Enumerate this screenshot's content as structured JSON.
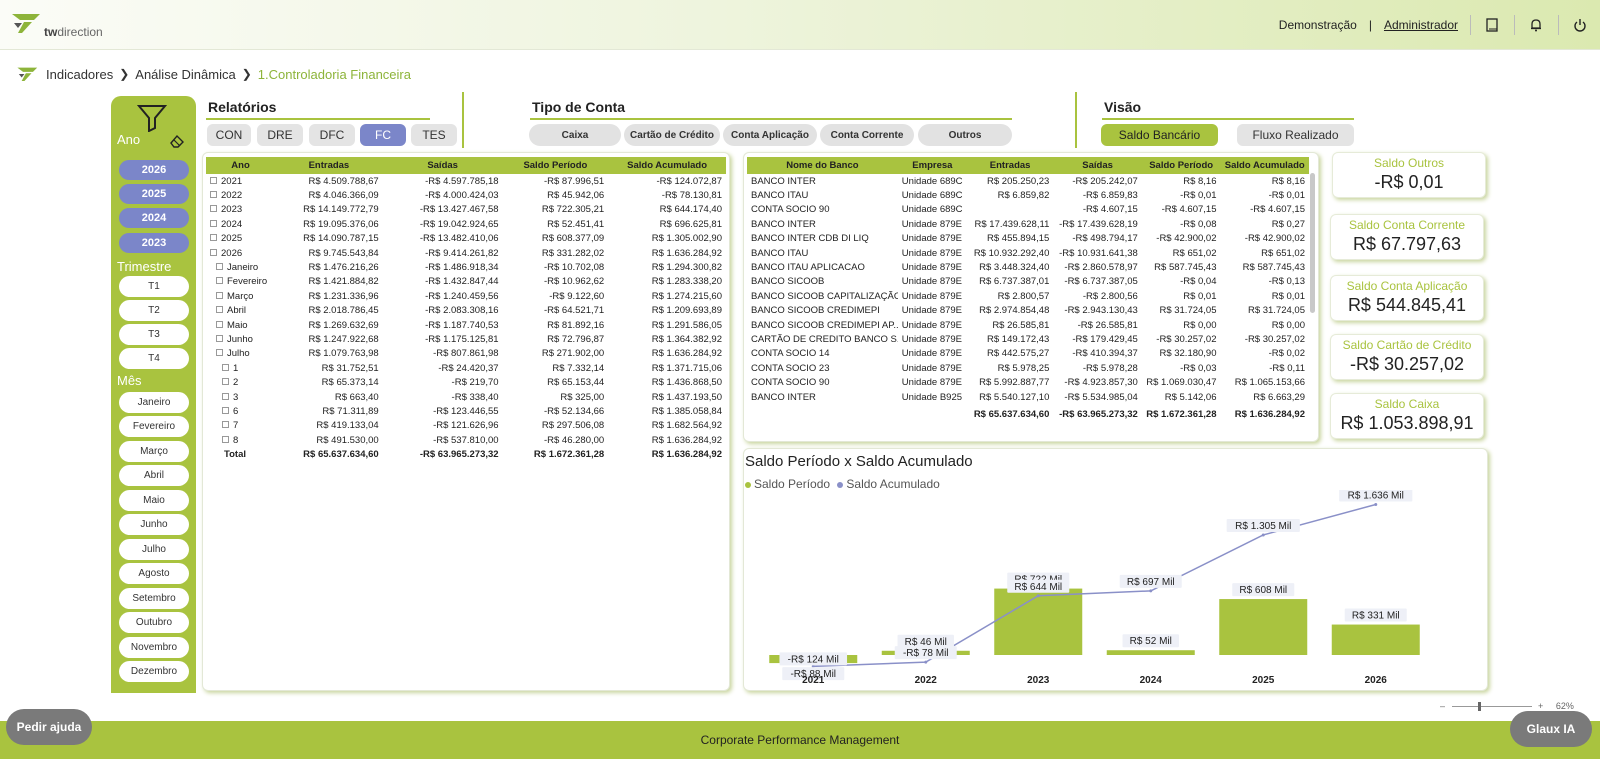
{
  "topbar": {
    "logo_text_bold": "tw",
    "logo_text": "direction",
    "demo": "Demonstração",
    "sep": "|",
    "admin": "Administrador"
  },
  "breadcrumb": [
    "Indicadores",
    "Análise Dinâmica",
    "1.Controladoria Financeira"
  ],
  "filters": {
    "ano_label": "Ano",
    "anos": [
      "2026",
      "2025",
      "2024",
      "2023"
    ],
    "trimestre_label": "Trimestre",
    "trimestres": [
      "T1",
      "T2",
      "T3",
      "T4"
    ],
    "mes_label": "Mês",
    "meses": [
      "Janeiro",
      "Fevereiro",
      "Março",
      "Abril",
      "Maio",
      "Junho",
      "Julho",
      "Agosto",
      "Setembro",
      "Outubro",
      "Novembro",
      "Dezembro"
    ]
  },
  "relatorios": {
    "title": "Relatórios",
    "tabs": [
      "CON",
      "DRE",
      "DFC",
      "FC",
      "TES"
    ],
    "selected": "FC"
  },
  "tipo_conta": {
    "title": "Tipo de Conta",
    "buttons": [
      "Caixa",
      "Cartão de Crédito",
      "Conta Aplicação",
      "Conta Corrente",
      "Outros"
    ]
  },
  "visao": {
    "title": "Visão",
    "buttons": [
      "Saldo Bancário",
      "Fluxo Realizado"
    ],
    "selected": "Saldo Bancário"
  },
  "colors": {
    "accent": "#a9c33f",
    "selected": "#7b86c9",
    "line": "#8a90c8"
  },
  "year_table": {
    "headers": [
      "Ano",
      "Entradas",
      "Saídas",
      "Saldo Período",
      "Saldo Acumulado"
    ],
    "rows": [
      {
        "label": "2021",
        "indent": 0,
        "icon": "plus",
        "e": "R$ 4.509.788,67",
        "s": "-R$ 4.597.785,18",
        "sp": "-R$ 87.996,51",
        "sa": "-R$ 124.072,87"
      },
      {
        "label": "2022",
        "indent": 0,
        "icon": "plus",
        "e": "R$ 4.046.366,09",
        "s": "-R$ 4.000.424,03",
        "sp": "R$ 45.942,06",
        "sa": "-R$ 78.130,81"
      },
      {
        "label": "2023",
        "indent": 0,
        "icon": "plus",
        "e": "R$ 14.149.772,79",
        "s": "-R$ 13.427.467,58",
        "sp": "R$ 722.305,21",
        "sa": "R$ 644.174,40"
      },
      {
        "label": "2024",
        "indent": 0,
        "icon": "plus",
        "e": "R$ 19.095.376,06",
        "s": "-R$ 19.042.924,65",
        "sp": "R$ 52.451,41",
        "sa": "R$ 696.625,81"
      },
      {
        "label": "2025",
        "indent": 0,
        "icon": "plus",
        "e": "R$ 14.090.787,15",
        "s": "-R$ 13.482.410,06",
        "sp": "R$ 608.377,09",
        "sa": "R$ 1.305.002,90"
      },
      {
        "label": "2026",
        "indent": 0,
        "icon": "minus",
        "e": "R$ 9.745.543,84",
        "s": "-R$ 9.414.261,82",
        "sp": "R$ 331.282,02",
        "sa": "R$ 1.636.284,92"
      },
      {
        "label": "Janeiro",
        "indent": 1,
        "icon": "plus",
        "e": "R$ 1.476.216,26",
        "s": "-R$ 1.486.918,34",
        "sp": "-R$ 10.702,08",
        "sa": "R$ 1.294.300,82"
      },
      {
        "label": "Fevereiro",
        "indent": 1,
        "icon": "plus",
        "e": "R$ 1.421.884,82",
        "s": "-R$ 1.432.847,44",
        "sp": "-R$ 10.962,62",
        "sa": "R$ 1.283.338,20"
      },
      {
        "label": "Março",
        "indent": 1,
        "icon": "plus",
        "e": "R$ 1.231.336,96",
        "s": "-R$ 1.240.459,56",
        "sp": "-R$ 9.122,60",
        "sa": "R$ 1.274.215,60"
      },
      {
        "label": "Abril",
        "indent": 1,
        "icon": "plus",
        "e": "R$ 2.018.786,45",
        "s": "-R$ 2.083.308,16",
        "sp": "-R$ 64.521,71",
        "sa": "R$ 1.209.693,89"
      },
      {
        "label": "Maio",
        "indent": 1,
        "icon": "plus",
        "e": "R$ 1.269.632,69",
        "s": "-R$ 1.187.740,53",
        "sp": "R$ 81.892,16",
        "sa": "R$ 1.291.586,05"
      },
      {
        "label": "Junho",
        "indent": 1,
        "icon": "plus",
        "e": "R$ 1.247.922,68",
        "s": "-R$ 1.175.125,81",
        "sp": "R$ 72.796,87",
        "sa": "R$ 1.364.382,92"
      },
      {
        "label": "Julho",
        "indent": 1,
        "icon": "minus",
        "e": "R$ 1.079.763,98",
        "s": "-R$ 807.861,98",
        "sp": "R$ 271.902,00",
        "sa": "R$ 1.636.284,92"
      },
      {
        "label": "1",
        "indent": 2,
        "icon": "plus",
        "e": "R$ 31.752,51",
        "s": "-R$ 24.420,37",
        "sp": "R$ 7.332,14",
        "sa": "R$ 1.371.715,06"
      },
      {
        "label": "2",
        "indent": 2,
        "icon": "plus",
        "e": "R$ 65.373,14",
        "s": "-R$ 219,70",
        "sp": "R$ 65.153,44",
        "sa": "R$ 1.436.868,50"
      },
      {
        "label": "3",
        "indent": 2,
        "icon": "plus",
        "e": "R$ 663,40",
        "s": "-R$ 338,40",
        "sp": "R$ 325,00",
        "sa": "R$ 1.437.193,50"
      },
      {
        "label": "6",
        "indent": 2,
        "icon": "plus",
        "e": "R$ 71.311,89",
        "s": "-R$ 123.446,55",
        "sp": "-R$ 52.134,66",
        "sa": "R$ 1.385.058,84"
      },
      {
        "label": "7",
        "indent": 2,
        "icon": "plus",
        "e": "R$ 419.133,04",
        "s": "-R$ 121.626,96",
        "sp": "R$ 297.506,08",
        "sa": "R$ 1.682.564,92"
      },
      {
        "label": "8",
        "indent": 2,
        "icon": "plus",
        "e": "R$ 491.530,00",
        "s": "-R$ 537.810,00",
        "sp": "-R$ 46.280,00",
        "sa": "R$ 1.636.284,92"
      }
    ],
    "total": {
      "label": "Total",
      "e": "R$ 65.637.634,60",
      "s": "-R$ 63.965.273,32",
      "sp": "R$ 1.672.361,28",
      "sa": "R$ 1.636.284,92"
    }
  },
  "bank_table": {
    "headers": [
      "Nome do Banco",
      "Empresa",
      "Entradas",
      "Saídas",
      "Saldo Período",
      "Saldo Acumulado"
    ],
    "rows": [
      [
        "BANCO INTER",
        "Unidade 689C",
        "R$ 205.250,23",
        "-R$ 205.242,07",
        "R$ 8,16",
        "R$ 8,16"
      ],
      [
        "BANCO ITAU",
        "Unidade 689C",
        "R$ 6.859,82",
        "-R$ 6.859,83",
        "-R$ 0,01",
        "-R$ 0,01"
      ],
      [
        "CONTA SOCIO 90",
        "Unidade 689C",
        "",
        "-R$ 4.607,15",
        "-R$ 4.607,15",
        "-R$ 4.607,15"
      ],
      [
        "BANCO INTER",
        "Unidade 879E",
        "R$ 17.439.628,11",
        "-R$ 17.439.628,19",
        "-R$ 0,08",
        "R$ 0,27"
      ],
      [
        "BANCO INTER CDB DI LIQ",
        "Unidade 879E",
        "R$ 455.894,15",
        "-R$ 498.794,17",
        "-R$ 42.900,02",
        "-R$ 42.900,02"
      ],
      [
        "BANCO ITAU",
        "Unidade 879E",
        "R$ 10.932.292,40",
        "-R$ 10.931.641,38",
        "R$ 651,02",
        "R$ 651,02"
      ],
      [
        "BANCO ITAU APLICACAO",
        "Unidade 879E",
        "R$ 3.448.324,40",
        "-R$ 2.860.578,97",
        "R$ 587.745,43",
        "R$ 587.745,43"
      ],
      [
        "BANCO SICOOB",
        "Unidade 879E",
        "R$ 6.737.387,01",
        "-R$ 6.737.387,05",
        "-R$ 0,04",
        "-R$ 0,13"
      ],
      [
        "BANCO SICOOB CAPITALIZAÇÃO",
        "Unidade 879E",
        "R$ 2.800,57",
        "-R$ 2.800,56",
        "R$ 0,01",
        "R$ 0,01"
      ],
      [
        "BANCO SICOOB CREDIMEPI",
        "Unidade 879E",
        "R$ 2.974.854,48",
        "-R$ 2.943.130,43",
        "R$ 31.724,05",
        "R$ 31.724,05"
      ],
      [
        "BANCO SICOOB CREDIMEPI AP...",
        "Unidade 879E",
        "R$ 26.585,81",
        "-R$ 26.585,81",
        "R$ 0,00",
        "R$ 0,00"
      ],
      [
        "CARTÃO DE CREDITO BANCO S...",
        "Unidade 879E",
        "R$ 149.172,43",
        "-R$ 179.429,45",
        "-R$ 30.257,02",
        "-R$ 30.257,02"
      ],
      [
        "CONTA SOCIO 14",
        "Unidade 879E",
        "R$ 442.575,27",
        "-R$ 410.394,37",
        "R$ 32.180,90",
        "-R$ 0,02"
      ],
      [
        "CONTA SOCIO 23",
        "Unidade 879E",
        "R$ 5.978,25",
        "-R$ 5.978,28",
        "-R$ 0,03",
        "-R$ 0,11"
      ],
      [
        "CONTA SOCIO 90",
        "Unidade 879E",
        "R$ 5.992.887,77",
        "-R$ 4.923.857,30",
        "R$ 1.069.030,47",
        "R$ 1.065.153,66"
      ],
      [
        "BANCO INTER",
        "Unidade B925",
        "R$ 5.540.127,10",
        "-R$ 5.534.985,04",
        "R$ 5.142,06",
        "R$ 6.663,29"
      ]
    ],
    "total": [
      "",
      "",
      "R$ 65.637.634,60",
      "-R$ 63.965.273,32",
      "R$ 1.672.361,28",
      "R$ 1.636.284,92"
    ]
  },
  "kpis": [
    {
      "label": "Saldo Outros",
      "value": "-R$ 0,01"
    },
    {
      "label": "Saldo Conta Corrente",
      "value": "R$ 67.797,63"
    },
    {
      "label": "Saldo Conta Aplicação",
      "value": "R$ 544.845,41"
    },
    {
      "label": "Saldo Cartão de Crédito",
      "value": "-R$ 30.257,02"
    },
    {
      "label": "Saldo Caixa",
      "value": "R$ 1.053.898,91"
    }
  ],
  "chart_data": {
    "type": "bar",
    "title": "Saldo Período x Saldo Acumulado",
    "categories": [
      "2021",
      "2022",
      "2023",
      "2024",
      "2025",
      "2026"
    ],
    "series": [
      {
        "name": "Saldo Período",
        "kind": "bar",
        "color": "#a9c33f",
        "values": [
          -88,
          46,
          722,
          52,
          608,
          331
        ],
        "labels": [
          "-R$ 88 Mil",
          "R$ 46 Mil",
          "R$ 722 Mil",
          "R$ 52 Mil",
          "R$ 608 Mil",
          "R$ 331 Mil"
        ]
      },
      {
        "name": "Saldo Acumulado",
        "kind": "line",
        "color": "#8a90c8",
        "values": [
          -124,
          -78,
          644,
          697,
          1305,
          1636
        ],
        "labels": [
          "-R$ 124 Mil",
          "-R$ 78 Mil",
          "R$ 644 Mil",
          "R$ 697 Mil",
          "R$ 1.305 Mil",
          "R$ 1.636 Mil"
        ]
      }
    ],
    "legend": "top-left"
  },
  "zoom": "62%",
  "footer": "Corporate Performance Management",
  "help_button": "Pedir ajuda",
  "ai_button": "Glaux IA"
}
